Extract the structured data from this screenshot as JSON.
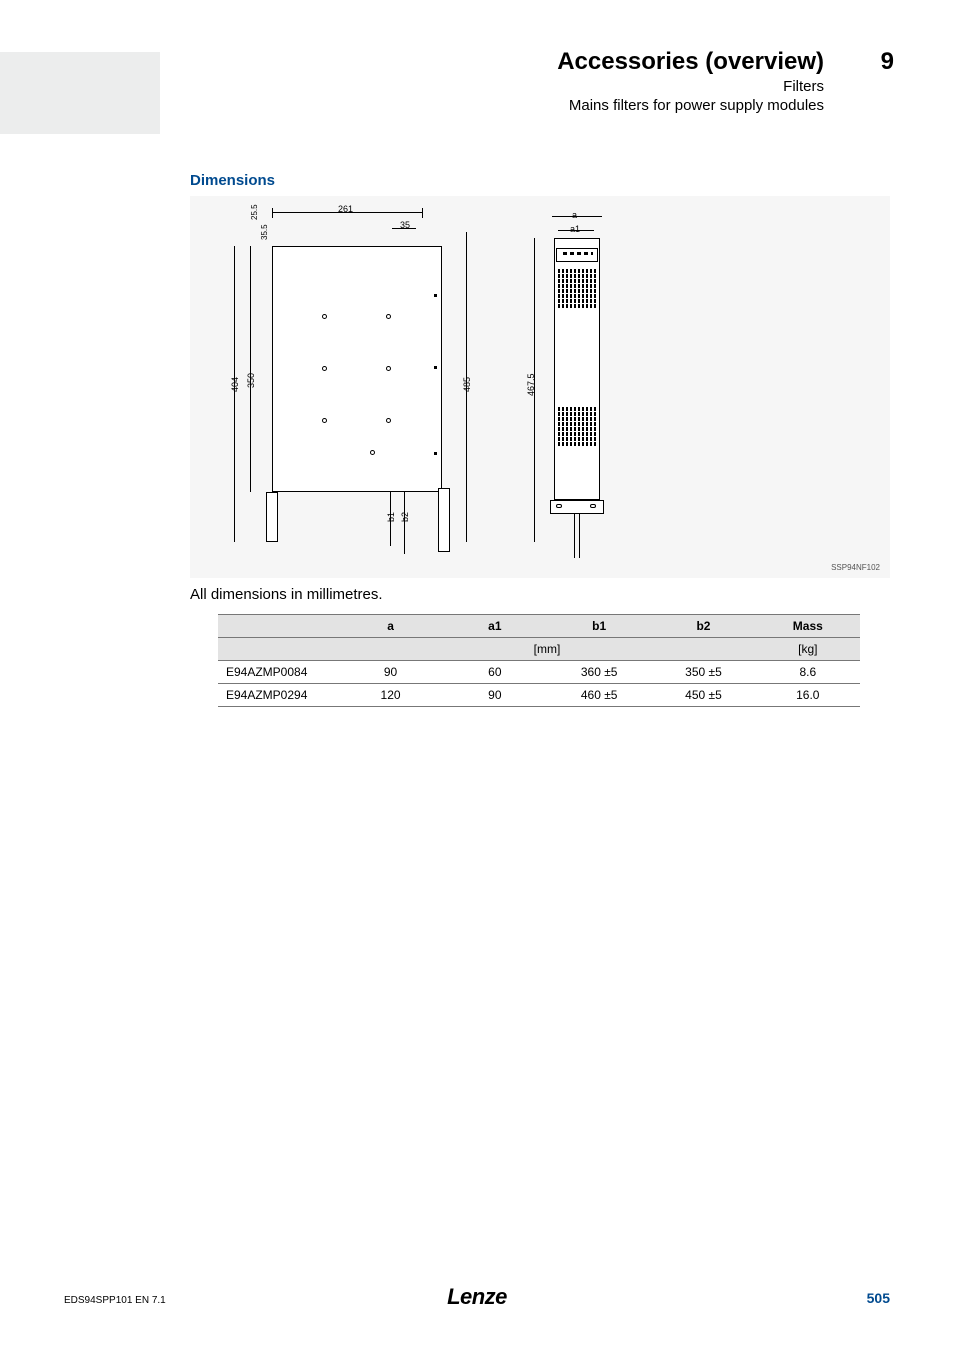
{
  "header": {
    "title": "Accessories (overview)",
    "sub1": "Filters",
    "sub2": "Mains filters for power supply modules",
    "chapter": "9"
  },
  "section_title": "Dimensions",
  "diagram": {
    "ref_code": "SSP94NF102",
    "dims": {
      "d261": "261",
      "d35": "35",
      "d25_5": "25.5",
      "d35_5": "35.5",
      "d404": "404",
      "d350": "350",
      "d485": "485",
      "d467_5": "467.5",
      "b1": "b1",
      "b2": "b2",
      "a": "a",
      "a1": "a1"
    }
  },
  "caption": "All dimensions in millimetres.",
  "table": {
    "columns": [
      "",
      "a",
      "a1",
      "b1",
      "b2",
      "Mass"
    ],
    "unit_mm": "[mm]",
    "unit_kg": "[kg]",
    "rows": [
      {
        "part": "E94AZMP0084",
        "a": "90",
        "a1": "60",
        "b1": "360 ±5",
        "b2": "350 ±5",
        "mass": "8.6"
      },
      {
        "part": "E94AZMP0294",
        "a": "120",
        "a1": "90",
        "b1": "460 ±5",
        "b2": "450 ±5",
        "mass": "16.0"
      }
    ]
  },
  "footer": {
    "left": "EDS94SPP101  EN  7.1",
    "logo": "Lenze",
    "page": "505"
  },
  "style": {
    "header_band_bg": "#eceded",
    "accent_color": "#004a8f",
    "diagram_bg": "#f6f6f6",
    "table_header_bg": "#e3e3e3",
    "table_border": "#777777",
    "text_color": "#000000"
  }
}
